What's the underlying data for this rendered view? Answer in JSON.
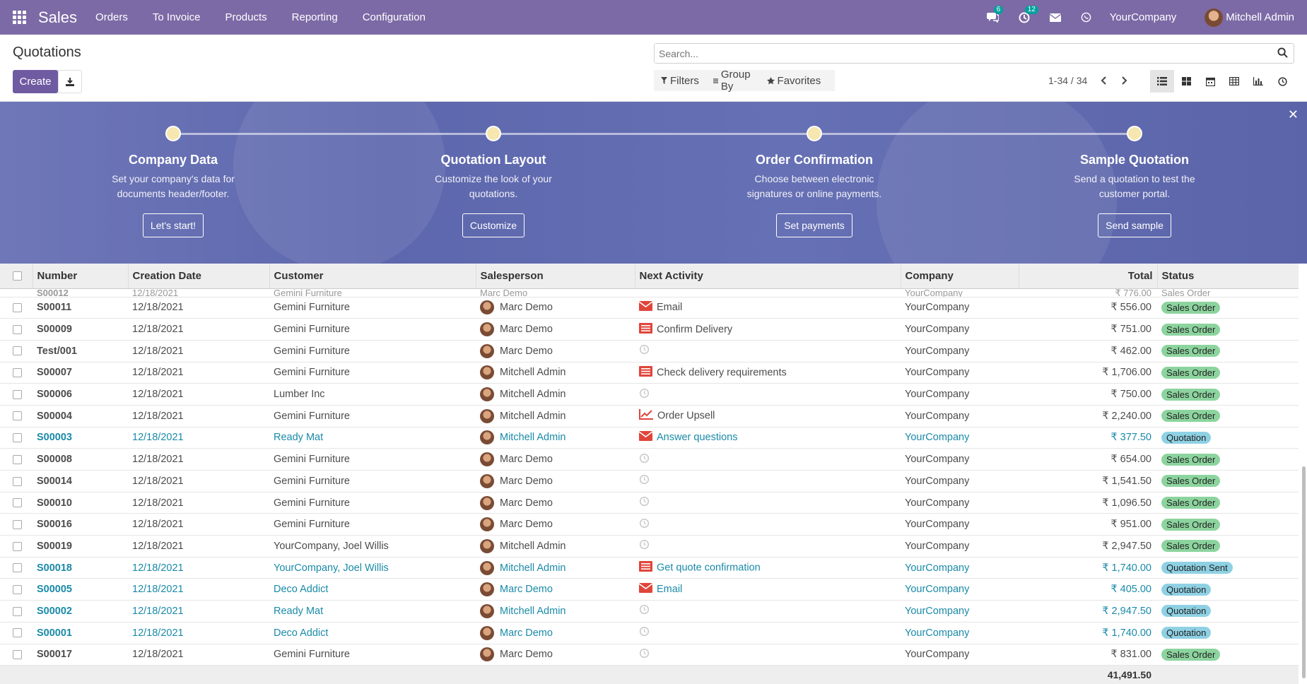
{
  "navbar": {
    "brand": "Sales",
    "menu": [
      "Orders",
      "To Invoice",
      "Products",
      "Reporting",
      "Configuration"
    ],
    "messages_count": "6",
    "activities_count": "12",
    "company": "YourCompany",
    "user": "Mitchell Admin"
  },
  "control_panel": {
    "title": "Quotations",
    "create_label": "Create",
    "search_placeholder": "Search...",
    "filters_label": "Filters",
    "groupby_label": "Group By",
    "favorites_label": "Favorites",
    "pager": "1-34 / 34"
  },
  "banner": {
    "steps": [
      {
        "title": "Company Data",
        "desc": "Set your company's data for documents header/footer.",
        "button": "Let's start!"
      },
      {
        "title": "Quotation Layout",
        "desc": "Customize the look of your quotations.",
        "button": "Customize"
      },
      {
        "title": "Order Confirmation",
        "desc": "Choose between electronic signatures or online payments.",
        "button": "Set payments"
      },
      {
        "title": "Sample Quotation",
        "desc": "Send a quotation to test the customer portal.",
        "button": "Send sample"
      }
    ]
  },
  "table": {
    "columns": [
      "Number",
      "Creation Date",
      "Customer",
      "Salesperson",
      "Next Activity",
      "Company",
      "Total",
      "Status"
    ],
    "partial_row": {
      "number": "S00012",
      "date": "12/18/2021",
      "customer": "Gemini Furniture",
      "salesperson": "Marc Demo",
      "company": "YourCompany",
      "total": "₹ 776.00",
      "status": "Sales Order"
    },
    "rows": [
      {
        "number": "S00011",
        "date": "12/18/2021",
        "customer": "Gemini Furniture",
        "salesperson": "Marc Demo",
        "activity": "Email",
        "activity_icon": "envelope-icon",
        "company": "YourCompany",
        "total": "₹ 556.00",
        "status": "Sales Order",
        "kind": "sales"
      },
      {
        "number": "S00009",
        "date": "12/18/2021",
        "customer": "Gemini Furniture",
        "salesperson": "Marc Demo",
        "activity": "Confirm Delivery",
        "activity_icon": "tasks-icon",
        "company": "YourCompany",
        "total": "₹ 751.00",
        "status": "Sales Order",
        "kind": "sales"
      },
      {
        "number": "Test/001",
        "date": "12/18/2021",
        "customer": "Gemini Furniture",
        "salesperson": "Marc Demo",
        "activity": "",
        "activity_icon": "clock-icon",
        "company": "YourCompany",
        "total": "₹ 462.00",
        "status": "Sales Order",
        "kind": "sales"
      },
      {
        "number": "S00007",
        "date": "12/18/2021",
        "customer": "Gemini Furniture",
        "salesperson": "Mitchell Admin",
        "activity": "Check delivery requirements",
        "activity_icon": "tasks-icon",
        "company": "YourCompany",
        "total": "₹ 1,706.00",
        "status": "Sales Order",
        "kind": "sales"
      },
      {
        "number": "S00006",
        "date": "12/18/2021",
        "customer": "Lumber Inc",
        "salesperson": "Mitchell Admin",
        "activity": "",
        "activity_icon": "clock-icon",
        "company": "YourCompany",
        "total": "₹ 750.00",
        "status": "Sales Order",
        "kind": "sales"
      },
      {
        "number": "S00004",
        "date": "12/18/2021",
        "customer": "Gemini Furniture",
        "salesperson": "Mitchell Admin",
        "activity": "Order Upsell",
        "activity_icon": "line-chart-icon",
        "company": "YourCompany",
        "total": "₹ 2,240.00",
        "status": "Sales Order",
        "kind": "sales"
      },
      {
        "number": "S00003",
        "date": "12/18/2021",
        "customer": "Ready Mat",
        "salesperson": "Mitchell Admin",
        "activity": "Answer questions",
        "activity_icon": "envelope-icon",
        "company": "YourCompany",
        "total": "₹ 377.50",
        "status": "Quotation",
        "kind": "quote"
      },
      {
        "number": "S00008",
        "date": "12/18/2021",
        "customer": "Gemini Furniture",
        "salesperson": "Marc Demo",
        "activity": "",
        "activity_icon": "clock-icon",
        "company": "YourCompany",
        "total": "₹ 654.00",
        "status": "Sales Order",
        "kind": "sales"
      },
      {
        "number": "S00014",
        "date": "12/18/2021",
        "customer": "Gemini Furniture",
        "salesperson": "Marc Demo",
        "activity": "",
        "activity_icon": "clock-icon",
        "company": "YourCompany",
        "total": "₹ 1,541.50",
        "status": "Sales Order",
        "kind": "sales"
      },
      {
        "number": "S00010",
        "date": "12/18/2021",
        "customer": "Gemini Furniture",
        "salesperson": "Marc Demo",
        "activity": "",
        "activity_icon": "clock-icon",
        "company": "YourCompany",
        "total": "₹ 1,096.50",
        "status": "Sales Order",
        "kind": "sales"
      },
      {
        "number": "S00016",
        "date": "12/18/2021",
        "customer": "Gemini Furniture",
        "salesperson": "Marc Demo",
        "activity": "",
        "activity_icon": "clock-icon",
        "company": "YourCompany",
        "total": "₹ 951.00",
        "status": "Sales Order",
        "kind": "sales"
      },
      {
        "number": "S00019",
        "date": "12/18/2021",
        "customer": "YourCompany, Joel Willis",
        "salesperson": "Mitchell Admin",
        "activity": "",
        "activity_icon": "clock-icon",
        "company": "YourCompany",
        "total": "₹ 2,947.50",
        "status": "Sales Order",
        "kind": "sales"
      },
      {
        "number": "S00018",
        "date": "12/18/2021",
        "customer": "YourCompany, Joel Willis",
        "salesperson": "Mitchell Admin",
        "activity": "Get quote confirmation",
        "activity_icon": "tasks-icon",
        "company": "YourCompany",
        "total": "₹ 1,740.00",
        "status": "Quotation Sent",
        "kind": "quote"
      },
      {
        "number": "S00005",
        "date": "12/18/2021",
        "customer": "Deco Addict",
        "salesperson": "Marc Demo",
        "activity": "Email",
        "activity_icon": "envelope-icon",
        "company": "YourCompany",
        "total": "₹ 405.00",
        "status": "Quotation",
        "kind": "quote"
      },
      {
        "number": "S00002",
        "date": "12/18/2021",
        "customer": "Ready Mat",
        "salesperson": "Mitchell Admin",
        "activity": "",
        "activity_icon": "clock-icon",
        "company": "YourCompany",
        "total": "₹ 2,947.50",
        "status": "Quotation",
        "kind": "quote"
      },
      {
        "number": "S00001",
        "date": "12/18/2021",
        "customer": "Deco Addict",
        "salesperson": "Marc Demo",
        "activity": "",
        "activity_icon": "clock-icon",
        "company": "YourCompany",
        "total": "₹ 1,740.00",
        "status": "Quotation",
        "kind": "quote"
      },
      {
        "number": "S00017",
        "date": "12/18/2021",
        "customer": "Gemini Furniture",
        "salesperson": "Marc Demo",
        "activity": "",
        "activity_icon": "clock-icon",
        "company": "YourCompany",
        "total": "₹ 831.00",
        "status": "Sales Order",
        "kind": "sales"
      }
    ],
    "footer_total": "41,491.50"
  },
  "colors": {
    "navbar": "#7c6aa6",
    "primary_button": "#6f5ba1",
    "quotation_link": "#1a8aa8",
    "sales_order_badge": "#8cd49e",
    "quotation_badge": "#8fd1e4",
    "activity_red": "#e0453a"
  }
}
